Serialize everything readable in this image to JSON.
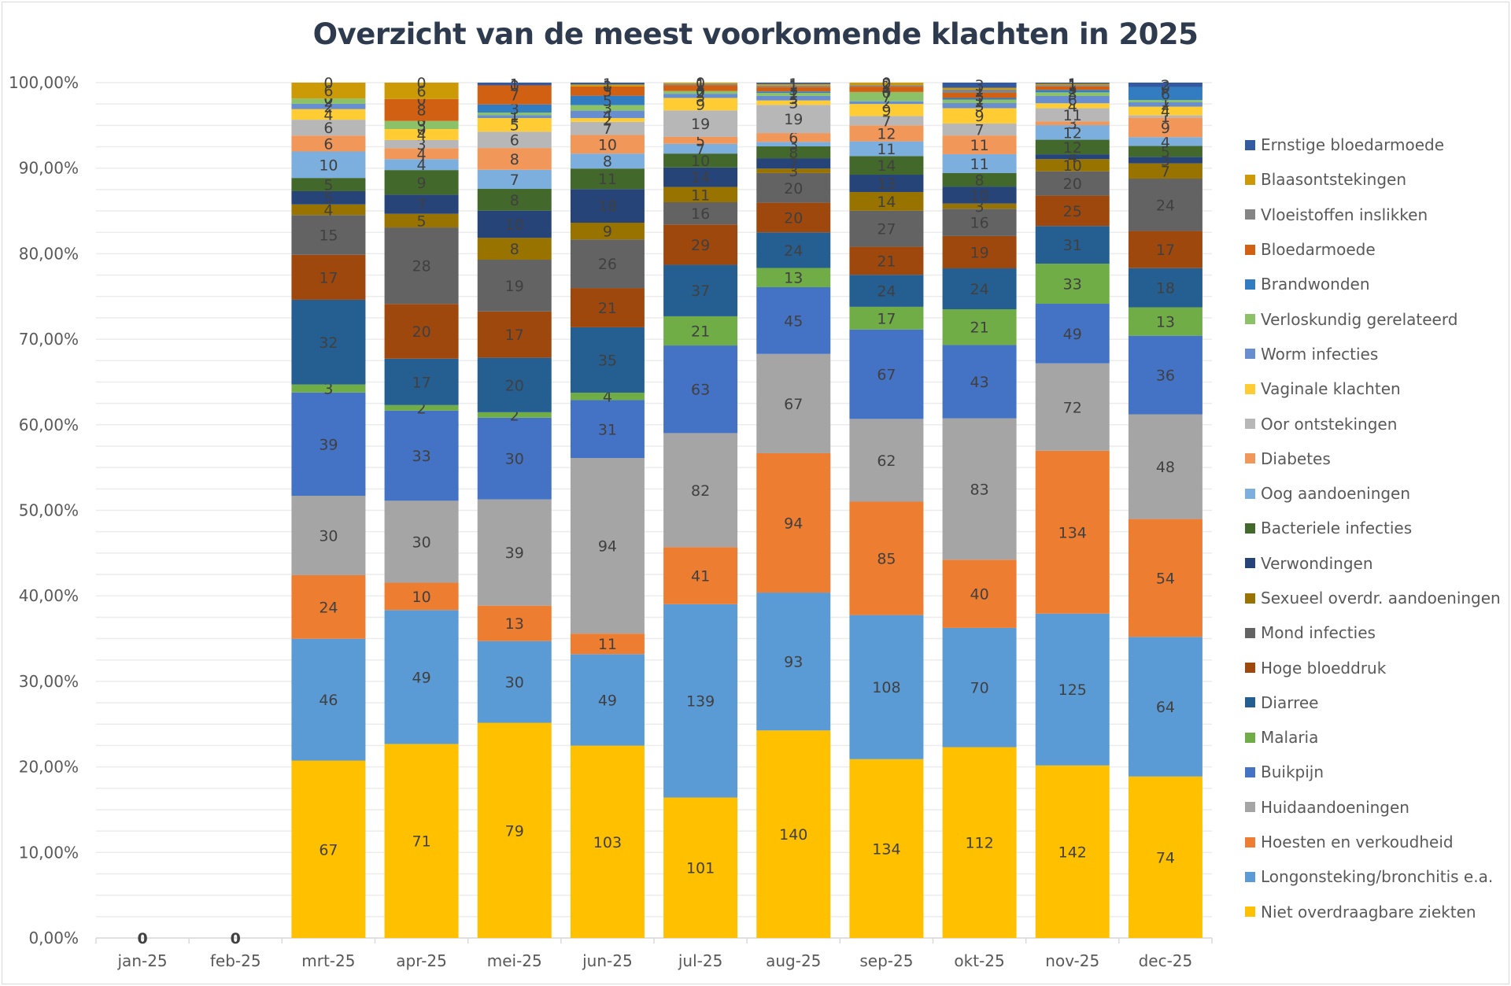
{
  "chart_data": {
    "type": "bar",
    "stacked": "percent",
    "title": "Overzicht van de meest voorkomende klachten in 2025",
    "xlabel": "",
    "ylabel": "",
    "ylim": [
      0,
      1
    ],
    "y_ticks": [
      "0,00%",
      "10,00%",
      "20,00%",
      "30,00%",
      "40,00%",
      "50,00%",
      "60,00%",
      "70,00%",
      "80,00%",
      "90,00%",
      "100,00%"
    ],
    "grid": true,
    "legend_position": "right",
    "categories": [
      "jan-25",
      "feb-25",
      "mrt-25",
      "apr-25",
      "mei-25",
      "jun-25",
      "jul-25",
      "aug-25",
      "sep-25",
      "okt-25",
      "nov-25",
      "dec-25"
    ],
    "empty_labels": [
      "0",
      "0"
    ],
    "series": [
      {
        "name": "Niet overdraagbare ziekten",
        "color": "#ffc000",
        "values": [
          0,
          0,
          67,
          71,
          79,
          103,
          101,
          140,
          134,
          112,
          142,
          74
        ]
      },
      {
        "name": "Longonsteking/bronchitis e.a.",
        "color": "#5b9bd5",
        "values": [
          0,
          0,
          46,
          49,
          30,
          49,
          139,
          93,
          108,
          70,
          125,
          64
        ]
      },
      {
        "name": "Hoesten en verkoudheid",
        "color": "#ed7d31",
        "values": [
          0,
          0,
          24,
          10,
          13,
          11,
          41,
          94,
          85,
          40,
          134,
          54
        ]
      },
      {
        "name": "Huidaandoeningen",
        "color": "#a5a5a5",
        "values": [
          0,
          0,
          30,
          30,
          39,
          94,
          82,
          67,
          62,
          83,
          72,
          48
        ]
      },
      {
        "name": "Buikpijn",
        "color": "#4472c4",
        "values": [
          0,
          0,
          39,
          33,
          30,
          31,
          63,
          45,
          67,
          43,
          49,
          36
        ]
      },
      {
        "name": "Malaria",
        "color": "#70ad47",
        "values": [
          0,
          0,
          3,
          2,
          2,
          4,
          21,
          13,
          17,
          21,
          33,
          13
        ]
      },
      {
        "name": "Diarree",
        "color": "#255e91",
        "values": [
          0,
          0,
          32,
          17,
          20,
          35,
          37,
          24,
          24,
          24,
          31,
          18
        ]
      },
      {
        "name": "Hoge bloeddruk",
        "color": "#9e480e",
        "values": [
          0,
          0,
          17,
          20,
          17,
          21,
          29,
          20,
          21,
          19,
          25,
          17
        ]
      },
      {
        "name": "Mond infecties",
        "color": "#636363",
        "values": [
          0,
          0,
          15,
          28,
          19,
          26,
          16,
          20,
          27,
          16,
          20,
          24
        ]
      },
      {
        "name": "Sexueel overdr. aandoeningen",
        "color": "#997300",
        "values": [
          0,
          0,
          4,
          5,
          8,
          9,
          11,
          3,
          14,
          3,
          10,
          7
        ]
      },
      {
        "name": "Verwondingen",
        "color": "#264478",
        "values": [
          0,
          0,
          5,
          7,
          10,
          18,
          14,
          7,
          13,
          10,
          4,
          3
        ]
      },
      {
        "name": "Bacteriele infecties",
        "color": "#43682b",
        "values": [
          0,
          0,
          5,
          9,
          8,
          11,
          10,
          8,
          14,
          8,
          12,
          5
        ]
      },
      {
        "name": "Oog aandoeningen",
        "color": "#7cafdd",
        "values": [
          0,
          0,
          10,
          4,
          7,
          8,
          7,
          3,
          11,
          11,
          12,
          4
        ]
      },
      {
        "name": "Diabetes",
        "color": "#f1975a",
        "values": [
          0,
          0,
          6,
          4,
          8,
          10,
          5,
          6,
          12,
          11,
          3,
          9
        ]
      },
      {
        "name": "Oor ontstekingen",
        "color": "#b7b7b7",
        "values": [
          0,
          0,
          6,
          3,
          6,
          7,
          19,
          19,
          7,
          7,
          11,
          1
        ]
      },
      {
        "name": "Vaginale klachten",
        "color": "#ffcd33",
        "values": [
          0,
          0,
          4,
          4,
          5,
          2,
          9,
          3,
          9,
          9,
          4,
          4
        ]
      },
      {
        "name": "Worm infecties",
        "color": "#698ed0",
        "values": [
          0,
          0,
          2,
          0,
          1,
          4,
          3,
          3,
          2,
          3,
          6,
          2
        ]
      },
      {
        "name": "Verloskundig gerelateerd",
        "color": "#8cc168",
        "values": [
          0,
          0,
          2,
          3,
          1,
          3,
          2,
          2,
          7,
          2,
          3,
          1
        ]
      },
      {
        "name": "Brandwonden",
        "color": "#327dc2",
        "values": [
          0,
          0,
          0,
          0,
          3,
          5,
          0,
          1,
          0,
          1,
          2,
          6
        ]
      },
      {
        "name": "Bloedarmoede",
        "color": "#d26012",
        "values": [
          0,
          0,
          0,
          8,
          7,
          5,
          4,
          3,
          4,
          3,
          3,
          0
        ]
      },
      {
        "name": "Vloeistoffen inslikken",
        "color": "#848484",
        "values": [
          0,
          0,
          0,
          0,
          0,
          0,
          1,
          1,
          1,
          2,
          1,
          0
        ]
      },
      {
        "name": "Blaasontstekingen",
        "color": "#cc9a06",
        "values": [
          0,
          0,
          6,
          6,
          0,
          1,
          1,
          1,
          2,
          1,
          1,
          0
        ]
      },
      {
        "name": "Ernstige bloedarmoede",
        "color": "#335aa1",
        "values": [
          0,
          0,
          0,
          0,
          1,
          1,
          0,
          1,
          0,
          3,
          1,
          2
        ]
      }
    ]
  }
}
